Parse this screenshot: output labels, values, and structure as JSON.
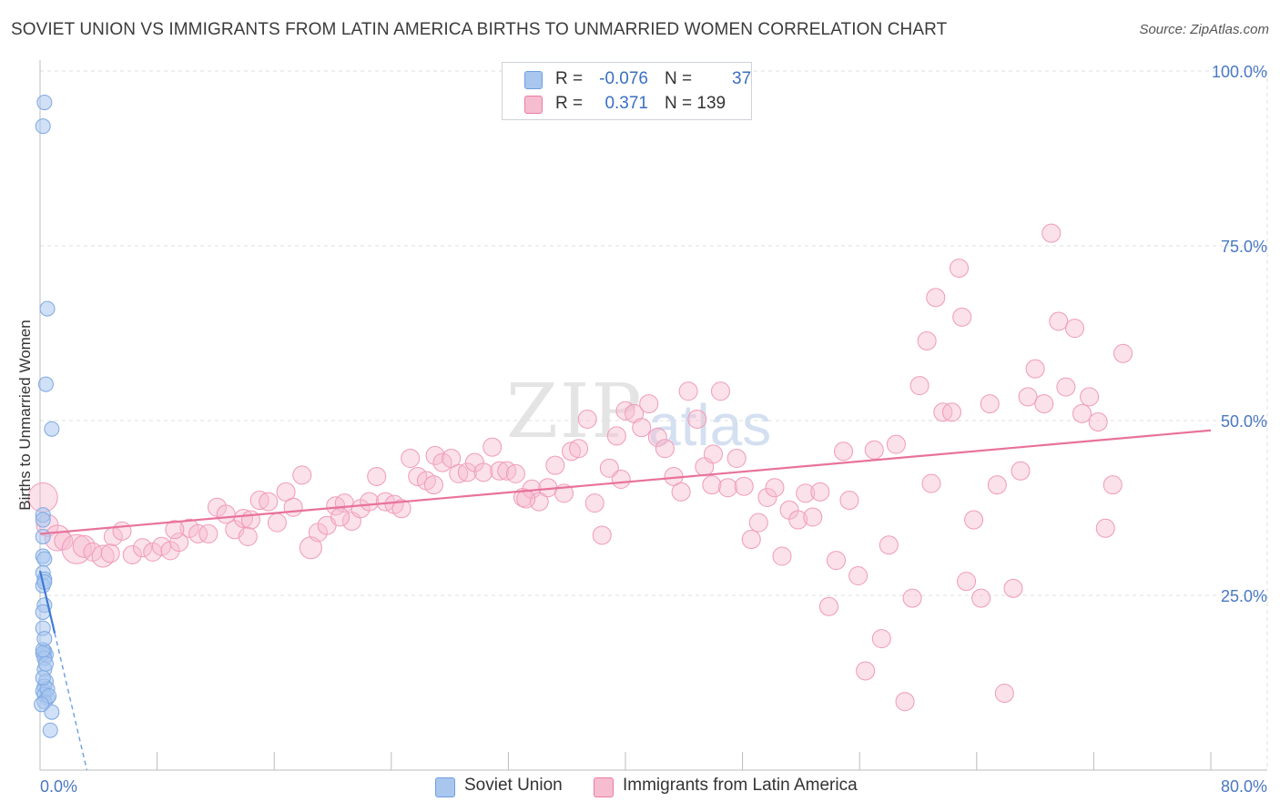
{
  "title": "SOVIET UNION VS IMMIGRANTS FROM LATIN AMERICA BIRTHS TO UNMARRIED WOMEN CORRELATION CHART",
  "source": "Source: ZipAtlas.com",
  "watermark": {
    "zip": "ZIP",
    "atlas": "atlas"
  },
  "legend": {
    "rows": [
      {
        "r_label": "R =",
        "r_value": "-0.076",
        "n_label": "N =",
        "n_value": "37",
        "color": "#a9c6ee"
      },
      {
        "r_label": "R =",
        "r_value": "0.371",
        "n_label": "N = 139",
        "n_value": "",
        "color": "#f6bcd0"
      }
    ]
  },
  "bottom_legend": {
    "series1": "Soviet Union",
    "series2": "Immigrants from Latin America"
  },
  "colors": {
    "blue": "#6e9ee0",
    "blue_fill": "#a9c6ee",
    "pink": "#ec7ca3",
    "pink_fill": "#f6bcd0",
    "axis_text": "#4a78c2"
  },
  "chart_data": {
    "type": "scatter",
    "title": "SOVIET UNION VS IMMIGRANTS FROM LATIN AMERICA BIRTHS TO UNMARRIED WOMEN CORRELATION CHART",
    "xlabel": "",
    "ylabel": "Births to Unmarried Women",
    "xlim": [
      0,
      80
    ],
    "ylim": [
      0,
      100
    ],
    "x_tick_labels": [
      "0.0%",
      "80.0%"
    ],
    "y_tick_labels": [
      "25.0%",
      "50.0%",
      "75.0%",
      "100.0%"
    ],
    "y_ticks": [
      25,
      50,
      75,
      100
    ],
    "grid": true,
    "legend_position": "top-center",
    "series": [
      {
        "name": "Soviet Union",
        "r": -0.076,
        "n": 37,
        "trend": {
          "x": [
            0,
            3.2
          ],
          "y": [
            28.5,
            0
          ]
        },
        "trend_solid_until_x": 1.0,
        "points": [
          [
            0.3,
            95.5
          ],
          [
            0.2,
            92.1
          ],
          [
            0.5,
            66.0
          ],
          [
            0.4,
            55.2
          ],
          [
            0.8,
            48.8
          ],
          [
            0.2,
            36.5
          ],
          [
            0.2,
            35.8
          ],
          [
            0.2,
            33.4
          ],
          [
            0.2,
            30.6
          ],
          [
            0.3,
            30.2
          ],
          [
            0.2,
            28.2
          ],
          [
            0.3,
            27.3
          ],
          [
            0.2,
            26.4
          ],
          [
            0.3,
            26.9
          ],
          [
            0.3,
            23.6
          ],
          [
            0.2,
            22.6
          ],
          [
            0.2,
            20.3
          ],
          [
            0.3,
            17.0
          ],
          [
            0.4,
            16.5
          ],
          [
            0.2,
            16.7
          ],
          [
            0.3,
            16.0
          ],
          [
            0.3,
            14.4
          ],
          [
            0.4,
            12.7
          ],
          [
            0.3,
            12.0
          ],
          [
            0.2,
            11.3
          ],
          [
            0.3,
            10.8
          ],
          [
            0.5,
            10.3
          ],
          [
            0.3,
            9.8
          ],
          [
            0.8,
            8.3
          ],
          [
            0.7,
            5.7
          ],
          [
            0.2,
            17.2
          ],
          [
            0.4,
            15.2
          ],
          [
            0.5,
            11.6
          ],
          [
            0.2,
            13.2
          ],
          [
            0.3,
            18.8
          ],
          [
            0.6,
            10.6
          ],
          [
            0.1,
            9.4
          ]
        ]
      },
      {
        "name": "Immigrants from Latin America",
        "r": 0.371,
        "n": 139,
        "trend": {
          "x": [
            0,
            80
          ],
          "y": [
            33.8,
            48.6
          ]
        },
        "points": [
          [
            0.2,
            39.0,
            16
          ],
          [
            0.5,
            35.0,
            12
          ],
          [
            1.2,
            33.2,
            14
          ],
          [
            1.6,
            32.8,
            10
          ],
          [
            2.5,
            31.6,
            16
          ],
          [
            3.0,
            32.0,
            12
          ],
          [
            3.6,
            31.2,
            10
          ],
          [
            4.3,
            30.6,
            12
          ],
          [
            5.0,
            33.4,
            10
          ],
          [
            5.6,
            34.2,
            10
          ],
          [
            6.3,
            30.8,
            10
          ],
          [
            7.0,
            31.8,
            10
          ],
          [
            7.7,
            31.2,
            10
          ],
          [
            8.3,
            32.0,
            10
          ],
          [
            8.9,
            31.4,
            10
          ],
          [
            9.5,
            32.6,
            10
          ],
          [
            10.2,
            34.6,
            10
          ],
          [
            10.8,
            33.8,
            10
          ],
          [
            11.5,
            33.8,
            10
          ],
          [
            12.1,
            37.6,
            10
          ],
          [
            12.7,
            36.6,
            10
          ],
          [
            13.3,
            34.4,
            10
          ],
          [
            13.9,
            36.0,
            10
          ],
          [
            14.4,
            35.8,
            10
          ],
          [
            15.0,
            38.6,
            10
          ],
          [
            15.6,
            38.4,
            10
          ],
          [
            16.2,
            35.4,
            10
          ],
          [
            16.8,
            39.8,
            10
          ],
          [
            17.3,
            37.6,
            10
          ],
          [
            17.9,
            42.2,
            10
          ],
          [
            18.5,
            31.8,
            12
          ],
          [
            19.0,
            34.0,
            10
          ],
          [
            19.6,
            35.0,
            10
          ],
          [
            20.2,
            37.8,
            10
          ],
          [
            20.8,
            38.2,
            10
          ],
          [
            21.3,
            35.6,
            10
          ],
          [
            21.9,
            37.4,
            10
          ],
          [
            22.5,
            38.4,
            10
          ],
          [
            23.0,
            42.0,
            10
          ],
          [
            23.6,
            38.4,
            10
          ],
          [
            24.2,
            38.0,
            10
          ],
          [
            24.7,
            37.4,
            10
          ],
          [
            25.3,
            44.6,
            10
          ],
          [
            25.8,
            42.0,
            10
          ],
          [
            26.4,
            41.4,
            10
          ],
          [
            27.0,
            45.0,
            10
          ],
          [
            27.5,
            44.0,
            10
          ],
          [
            28.1,
            44.6,
            10
          ],
          [
            28.6,
            42.4,
            10
          ],
          [
            29.2,
            42.6,
            10
          ],
          [
            29.7,
            44.0,
            10
          ],
          [
            30.3,
            42.6,
            10
          ],
          [
            30.9,
            46.2,
            10
          ],
          [
            31.4,
            42.8,
            10
          ],
          [
            31.9,
            42.8,
            10
          ],
          [
            32.5,
            42.4,
            10
          ],
          [
            33.0,
            39.0,
            10
          ],
          [
            33.6,
            40.2,
            10
          ],
          [
            34.1,
            38.4,
            10
          ],
          [
            34.7,
            40.4,
            10
          ],
          [
            35.2,
            43.6,
            10
          ],
          [
            35.8,
            39.6,
            10
          ],
          [
            36.3,
            45.6,
            10
          ],
          [
            36.8,
            46.0,
            10
          ],
          [
            37.4,
            50.2,
            10
          ],
          [
            37.9,
            38.2,
            10
          ],
          [
            38.4,
            33.6,
            10
          ],
          [
            38.9,
            43.2,
            10
          ],
          [
            39.4,
            47.8,
            10
          ],
          [
            40.0,
            51.4,
            10
          ],
          [
            40.6,
            51.0,
            10
          ],
          [
            41.1,
            49.0,
            10
          ],
          [
            41.6,
            52.4,
            10
          ],
          [
            42.2,
            47.6,
            10
          ],
          [
            42.7,
            46.0,
            10
          ],
          [
            43.3,
            42.0,
            10
          ],
          [
            43.8,
            39.8,
            10
          ],
          [
            44.3,
            54.2,
            10
          ],
          [
            44.9,
            50.2,
            10
          ],
          [
            45.4,
            43.4,
            10
          ],
          [
            45.9,
            40.8,
            10
          ],
          [
            46.5,
            54.2,
            10
          ],
          [
            47.0,
            40.4,
            10
          ],
          [
            47.6,
            44.6,
            10
          ],
          [
            48.1,
            40.6,
            10
          ],
          [
            48.6,
            33.0,
            10
          ],
          [
            49.1,
            35.4,
            10
          ],
          [
            49.7,
            39.0,
            10
          ],
          [
            50.2,
            40.4,
            10
          ],
          [
            50.7,
            30.6,
            10
          ],
          [
            51.2,
            37.2,
            10
          ],
          [
            51.8,
            35.8,
            10
          ],
          [
            52.3,
            39.6,
            10
          ],
          [
            52.8,
            36.2,
            10
          ],
          [
            53.3,
            39.8,
            10
          ],
          [
            53.9,
            23.4,
            10
          ],
          [
            54.4,
            30.0,
            10
          ],
          [
            54.9,
            45.6,
            10
          ],
          [
            55.9,
            27.8,
            10
          ],
          [
            56.4,
            14.2,
            10
          ],
          [
            57.0,
            45.8,
            10
          ],
          [
            57.5,
            18.8,
            10
          ],
          [
            58.0,
            32.2,
            10
          ],
          [
            58.5,
            46.6,
            10
          ],
          [
            59.1,
            9.8,
            10
          ],
          [
            59.6,
            24.6,
            10
          ],
          [
            60.1,
            55.0,
            10
          ],
          [
            60.6,
            61.4,
            10
          ],
          [
            61.2,
            67.6,
            10
          ],
          [
            61.7,
            51.2,
            10
          ],
          [
            62.3,
            51.2,
            10
          ],
          [
            62.8,
            71.8,
            10
          ],
          [
            63.3,
            27.0,
            10
          ],
          [
            63.8,
            35.8,
            10
          ],
          [
            64.3,
            24.6,
            10
          ],
          [
            64.9,
            52.4,
            10
          ],
          [
            65.4,
            40.8,
            10
          ],
          [
            65.9,
            11.0,
            10
          ],
          [
            66.5,
            26.0,
            10
          ],
          [
            67.0,
            42.8,
            10
          ],
          [
            67.5,
            53.4,
            10
          ],
          [
            68.0,
            57.4,
            10
          ],
          [
            68.6,
            52.4,
            10
          ],
          [
            69.1,
            76.8,
            10
          ],
          [
            69.6,
            64.2,
            10
          ],
          [
            70.1,
            54.8,
            10
          ],
          [
            70.7,
            63.2,
            10
          ],
          [
            71.2,
            51.0,
            10
          ],
          [
            71.7,
            53.4,
            10
          ],
          [
            72.3,
            49.8,
            10
          ],
          [
            72.8,
            34.6,
            10
          ],
          [
            73.3,
            40.8,
            10
          ],
          [
            74.0,
            59.6,
            10
          ],
          [
            63.0,
            64.8,
            10
          ],
          [
            60.9,
            41.0,
            10
          ],
          [
            55.3,
            38.6,
            10
          ],
          [
            46.0,
            45.2,
            10
          ],
          [
            39.7,
            41.6,
            10
          ],
          [
            33.2,
            38.8,
            10
          ],
          [
            26.9,
            40.8,
            10
          ],
          [
            20.5,
            36.2,
            10
          ],
          [
            14.2,
            33.4,
            10
          ],
          [
            9.2,
            34.4,
            10
          ],
          [
            4.8,
            31.0,
            10
          ]
        ]
      }
    ]
  }
}
